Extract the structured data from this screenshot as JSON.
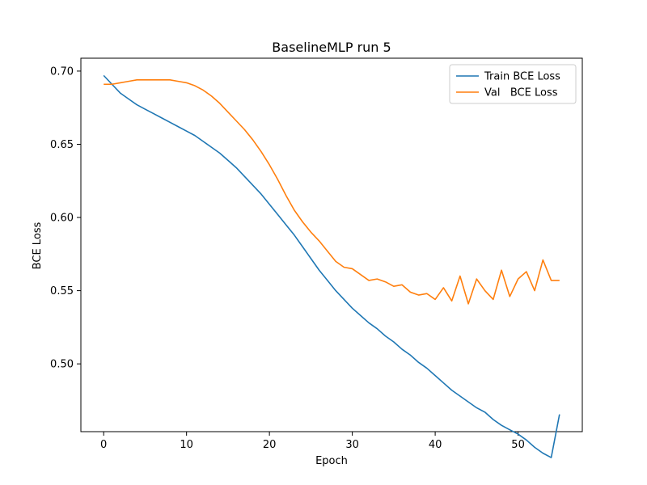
{
  "chart_data": {
    "type": "line",
    "title": "BaselineMLP run 5",
    "xlabel": "Epoch",
    "ylabel": "BCE Loss",
    "xlim": [
      -2.75,
      57.75
    ],
    "ylim": [
      0.4537,
      0.7088
    ],
    "xticks": [
      0,
      10,
      20,
      30,
      40,
      50
    ],
    "yticks": [
      0.5,
      0.55,
      0.6,
      0.65,
      0.7
    ],
    "xtick_labels": [
      "0",
      "10",
      "20",
      "30",
      "40",
      "50"
    ],
    "ytick_labels": [
      "0.50",
      "0.55",
      "0.60",
      "0.65",
      "0.70"
    ],
    "grid": false,
    "legend": "top-right",
    "x": [
      0,
      1,
      2,
      3,
      4,
      5,
      6,
      7,
      8,
      9,
      10,
      11,
      12,
      13,
      14,
      15,
      16,
      17,
      18,
      19,
      20,
      21,
      22,
      23,
      24,
      25,
      26,
      27,
      28,
      29,
      30,
      31,
      32,
      33,
      34,
      35,
      36,
      37,
      38,
      39,
      40,
      41,
      42,
      43,
      44,
      45,
      46,
      47,
      48,
      49,
      50,
      51,
      52,
      53,
      54,
      55
    ],
    "series": [
      {
        "name": "Train BCE Loss",
        "color": "#1f77b4",
        "values": [
          0.697,
          0.691,
          0.685,
          0.681,
          0.677,
          0.674,
          0.671,
          0.668,
          0.665,
          0.662,
          0.659,
          0.656,
          0.652,
          0.648,
          0.644,
          0.639,
          0.634,
          0.628,
          0.622,
          0.616,
          0.609,
          0.602,
          0.595,
          0.588,
          0.58,
          0.572,
          0.564,
          0.557,
          0.55,
          0.544,
          0.538,
          0.533,
          0.528,
          0.524,
          0.519,
          0.515,
          0.51,
          0.506,
          0.501,
          0.497,
          0.492,
          0.487,
          0.482,
          0.478,
          0.474,
          0.47,
          0.467,
          0.462,
          0.458,
          0.455,
          0.452,
          0.448,
          0.443,
          0.439,
          0.436,
          0.4655
        ]
      },
      {
        "name": "Val   BCE Loss",
        "color": "#ff7f0e",
        "values": [
          0.691,
          0.691,
          0.692,
          0.693,
          0.694,
          0.694,
          0.694,
          0.694,
          0.694,
          0.693,
          0.692,
          0.69,
          0.687,
          0.683,
          0.678,
          0.672,
          0.666,
          0.66,
          0.653,
          0.645,
          0.636,
          0.626,
          0.615,
          0.605,
          0.597,
          0.59,
          0.584,
          0.577,
          0.57,
          0.566,
          0.565,
          0.561,
          0.557,
          0.558,
          0.556,
          0.553,
          0.554,
          0.549,
          0.547,
          0.548,
          0.544,
          0.552,
          0.543,
          0.56,
          0.541,
          0.558,
          0.55,
          0.544,
          0.564,
          0.546,
          0.558,
          0.563,
          0.55,
          0.571,
          0.557,
          0.557
        ]
      }
    ]
  }
}
